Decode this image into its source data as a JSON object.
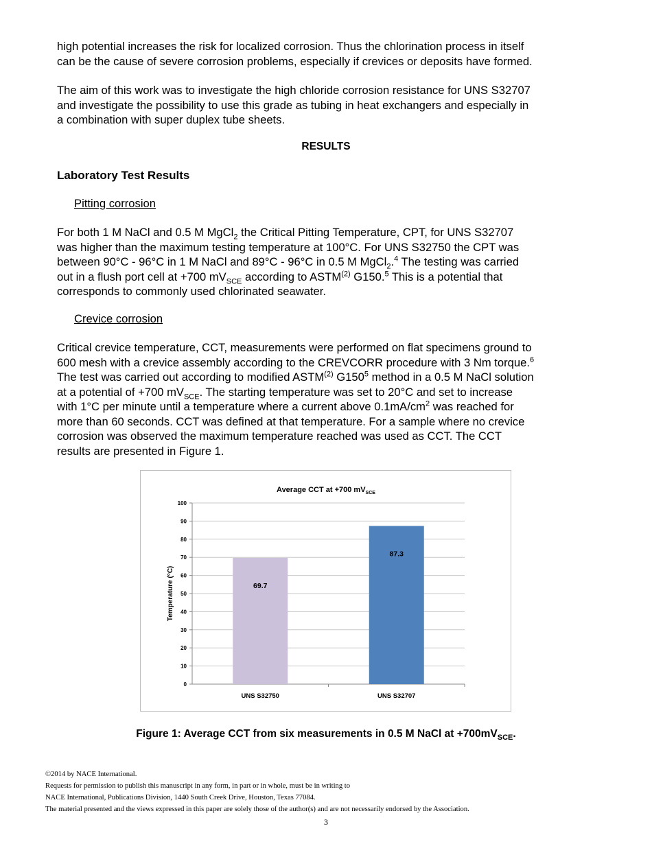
{
  "blocks": [
    {
      "kind": "para",
      "lines": [
        [
          [
            "high potential increases the risk for localized corrosion. Thus the chlorination process in itself"
          ]
        ],
        [
          [
            "can be the cause of severe corrosion problems, especially if crevices or deposits have formed."
          ]
        ]
      ]
    },
    {
      "kind": "para",
      "lines": [
        [
          [
            "The aim of this work was to investigate the high chloride corrosion resistance for UNS S32707"
          ]
        ],
        [
          [
            "and investigate the possibility to use this grade as tubing in heat exchangers and especially in"
          ]
        ],
        [
          [
            "a combination with super duplex tube sheets."
          ]
        ]
      ]
    },
    {
      "kind": "section-heading",
      "lines": [
        [
          [
            "RESULTS"
          ]
        ]
      ]
    },
    {
      "kind": "subsection-heading",
      "lines": [
        [
          [
            "Laboratory Test Results"
          ]
        ]
      ]
    },
    {
      "kind": "subheading",
      "lines": [
        [
          [
            "Pitting corrosion"
          ]
        ]
      ]
    },
    {
      "kind": "para",
      "lines": [
        [
          [
            "For both 1 M NaCl and 0.5 M MgCl"
          ],
          [
            "2",
            "sub"
          ],
          [
            " the Critical Pitting Temperature, CPT, for UNS S32707"
          ]
        ],
        [
          [
            "was higher than the maximum testing temperature at 100°C. For UNS S32750 the CPT was"
          ]
        ],
        [
          [
            "between 90°C - 96°C in 1 M NaCl and 89°C - 96°C in 0.5 M MgCl"
          ],
          [
            "2",
            "sub"
          ],
          [
            "."
          ],
          [
            "4",
            "sup"
          ],
          [
            " The testing was carried"
          ]
        ],
        [
          [
            "out in a flush port cell at +700 mV"
          ],
          [
            "SCE",
            "sub"
          ],
          [
            " according to ASTM"
          ],
          [
            "(2)",
            "sup"
          ],
          [
            " G150."
          ],
          [
            "5",
            "sup"
          ],
          [
            " This is a potential that"
          ]
        ],
        [
          [
            "corresponds to commonly used chlorinated seawater."
          ]
        ]
      ]
    },
    {
      "kind": "subheading",
      "lines": [
        [
          [
            "Crevice corrosion"
          ]
        ]
      ]
    },
    {
      "kind": "para",
      "lines": [
        [
          [
            "Critical crevice temperature, CCT, measurements were performed on flat specimens ground to"
          ]
        ],
        [
          [
            "600 mesh with a crevice assembly according to the CREVCORR procedure with 3 Nm torque."
          ],
          [
            "6",
            "sup"
          ]
        ],
        [
          [
            "The test was carried out according to modified ASTM"
          ],
          [
            "(2)",
            "sup"
          ],
          [
            " G150"
          ],
          [
            "5",
            "sup"
          ],
          [
            " method in a 0.5 M NaCl solution"
          ]
        ],
        [
          [
            "at a potential of +700 mV"
          ],
          [
            "SCE",
            "sub"
          ],
          [
            ". The starting temperature was set to 20°C and set to increase"
          ]
        ],
        [
          [
            "with 1°C per minute until a temperature where a current above 0.1mA/cm"
          ],
          [
            "2",
            "sup"
          ],
          [
            " was reached for"
          ]
        ],
        [
          [
            "more than 60 seconds. CCT was defined at that temperature. For a sample where no crevice"
          ]
        ],
        [
          [
            "corrosion was observed the maximum temperature reached was used as CCT. The CCT"
          ]
        ],
        [
          [
            "results are presented in Figure 1."
          ]
        ]
      ]
    }
  ],
  "chart_data": {
    "type": "bar",
    "title": "Average CCT at +700 mV",
    "title_subscript": "SCE",
    "ylabel": "Temperature (°C)",
    "xlabel": "",
    "categories": [
      "UNS S32750",
      "UNS S32707"
    ],
    "values": [
      69.7,
      87.3
    ],
    "data_labels": [
      "69.7",
      "87.3"
    ],
    "bar_colors": [
      "#ccc1da",
      "#4f81bd"
    ],
    "ylim": [
      0,
      100
    ],
    "yticks": [
      "0",
      "10",
      "20",
      "30",
      "40",
      "50",
      "60",
      "70",
      "80",
      "90",
      "100"
    ],
    "grid": true,
    "legend": "none"
  },
  "caption": {
    "text": "Figure 1: Average CCT from six measurements in 0.5 M NaCl at +700mV",
    "sub": "SCE",
    "end": "."
  },
  "footer": {
    "lines": [
      "©2014 by NACE International.",
      "Requests for permission to publish this manuscript in any form, in part or in whole, must be in writing to",
      "NACE International, Publications Division, 1440 South Creek Drive, Houston, Texas 77084.",
      "The material presented and the views expressed in this paper are solely those of the author(s) and are not necessarily endorsed by the Association."
    ],
    "page_number": "3"
  }
}
